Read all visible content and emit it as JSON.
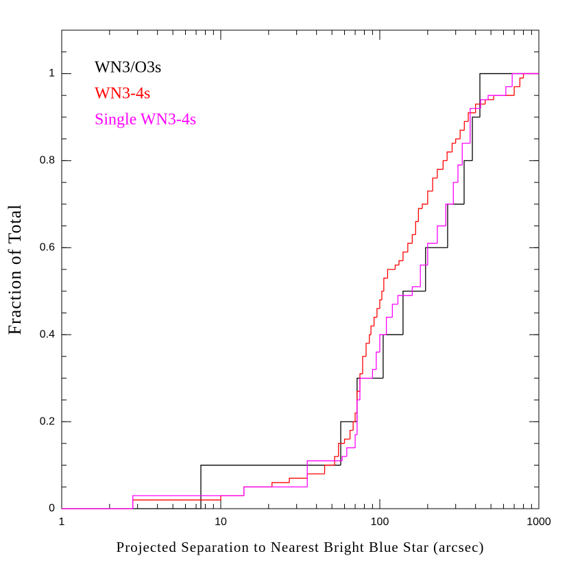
{
  "chart_data": {
    "type": "step",
    "xlabel": "Projected Separation to Nearest Bright Blue Star (arcsec)",
    "ylabel": "Fraction of Total",
    "xscale": "log",
    "xlim": [
      1,
      1000
    ],
    "xticks": [
      1,
      10,
      100,
      1000
    ],
    "ylim": [
      0,
      1.1
    ],
    "yticks": [
      0,
      0.2,
      0.4,
      0.6,
      0.8,
      1
    ],
    "series": [
      {
        "name": "WN3/O3s",
        "color": "#000000",
        "x": [
          7.5,
          56.8,
          72,
          105,
          140,
          194,
          267,
          339,
          382,
          426
        ],
        "values": [
          0.1,
          0.2,
          0.3,
          0.4,
          0.5,
          0.6,
          0.7,
          0.8,
          0.9,
          1.0
        ]
      },
      {
        "name": "WN3-4s",
        "color": "#ff0000",
        "x": [
          2.8,
          10,
          14,
          21,
          27,
          35,
          45,
          52,
          55,
          60,
          65,
          68,
          70,
          72,
          75,
          78,
          82,
          86,
          88,
          92,
          96,
          100,
          103,
          106,
          112,
          125,
          132,
          140,
          150,
          160,
          168,
          175,
          185,
          200,
          215,
          230,
          250,
          265,
          285,
          300,
          320,
          340,
          360,
          400,
          460,
          520,
          700,
          760,
          800
        ],
        "values": [
          0.02,
          0.03,
          0.05,
          0.06,
          0.07,
          0.08,
          0.1,
          0.12,
          0.15,
          0.16,
          0.18,
          0.2,
          0.22,
          0.27,
          0.31,
          0.35,
          0.38,
          0.4,
          0.42,
          0.44,
          0.46,
          0.48,
          0.5,
          0.53,
          0.55,
          0.56,
          0.57,
          0.59,
          0.61,
          0.63,
          0.66,
          0.69,
          0.7,
          0.73,
          0.76,
          0.78,
          0.8,
          0.82,
          0.84,
          0.85,
          0.87,
          0.89,
          0.91,
          0.93,
          0.94,
          0.95,
          0.97,
          0.99,
          1.0
        ]
      },
      {
        "name": "Single WN3-4s",
        "color": "#ff00ff",
        "x": [
          2.8,
          14,
          35,
          58,
          62,
          70,
          72,
          75,
          90,
          95,
          100,
          110,
          120,
          130,
          160,
          180,
          200,
          230,
          260,
          290,
          310,
          330,
          370,
          430,
          480,
          620,
          680
        ],
        "values": [
          0.03,
          0.05,
          0.11,
          0.12,
          0.14,
          0.17,
          0.25,
          0.3,
          0.32,
          0.36,
          0.4,
          0.44,
          0.47,
          0.49,
          0.51,
          0.56,
          0.61,
          0.65,
          0.7,
          0.75,
          0.79,
          0.84,
          0.92,
          0.94,
          0.95,
          0.97,
          1.0
        ]
      }
    ]
  }
}
